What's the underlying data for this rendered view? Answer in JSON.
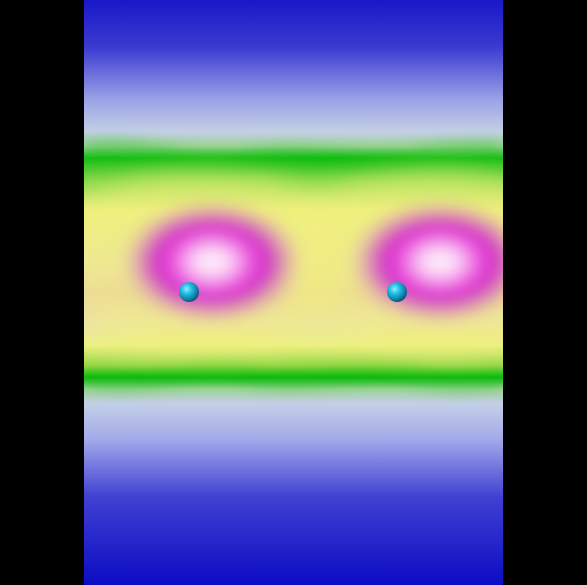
{
  "image": {
    "description_type": "density-visualization",
    "background_color": "#000000",
    "colormap": [
      "#1010c8",
      "#a8b4ea",
      "#12c012",
      "#f0f070",
      "#e8b8a0",
      "#e020d0",
      "#ffffff"
    ],
    "atoms": [
      {
        "id": "atom-1",
        "color": "#1aa7cf"
      },
      {
        "id": "atom-2",
        "color": "#1aa7cf"
      }
    ]
  }
}
